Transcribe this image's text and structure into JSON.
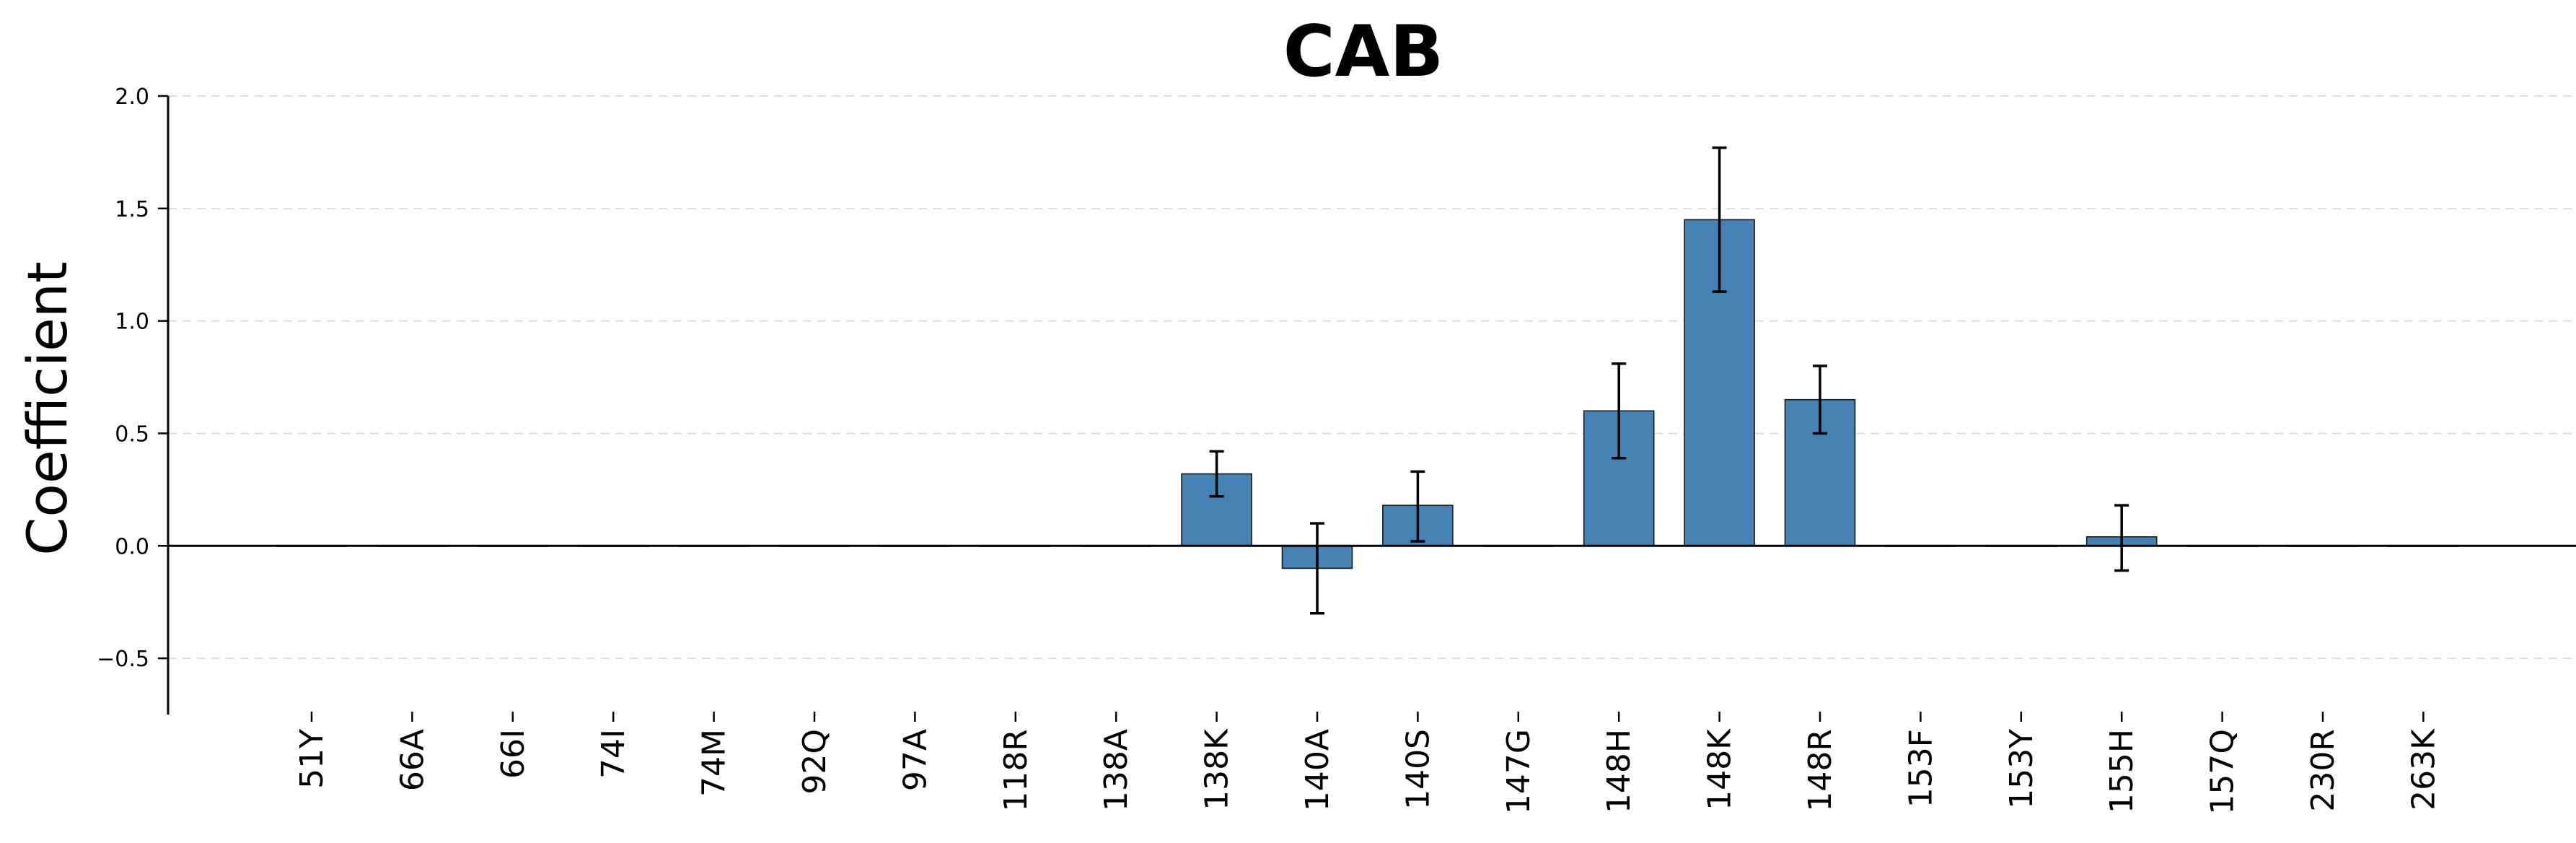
{
  "chart_data": {
    "type": "bar",
    "title": "CAB",
    "xlabel": "",
    "ylabel": "Coefficient",
    "ylim": [
      -0.75,
      2.0
    ],
    "yticks": [
      -0.5,
      0.0,
      0.5,
      1.0,
      1.5,
      2.0
    ],
    "ytick_labels": [
      "−0.5",
      "0.0",
      "0.5",
      "1.0",
      "1.5",
      "2.0"
    ],
    "grid": "horizontal dashed",
    "bar_color": "#4682b4",
    "categories": [
      "51Y",
      "66A",
      "66I",
      "74I",
      "74M",
      "92Q",
      "97A",
      "118R",
      "138A",
      "138K",
      "140A",
      "140S",
      "147G",
      "148H",
      "148K",
      "148R",
      "153F",
      "153Y",
      "155H",
      "157Q",
      "230R",
      "263K"
    ],
    "values": [
      0,
      0,
      0,
      0,
      0,
      0,
      0,
      0,
      0,
      0.32,
      -0.1,
      0.18,
      0,
      0.6,
      1.45,
      0.65,
      0,
      0,
      0.04,
      0,
      0,
      0
    ],
    "error_low": [
      null,
      null,
      null,
      null,
      null,
      null,
      null,
      null,
      null,
      0.22,
      -0.3,
      0.02,
      null,
      0.39,
      1.13,
      0.5,
      null,
      null,
      -0.11,
      null,
      null,
      null
    ],
    "error_high": [
      null,
      null,
      null,
      null,
      null,
      null,
      null,
      null,
      null,
      0.42,
      0.1,
      0.33,
      null,
      0.81,
      1.77,
      0.8,
      null,
      null,
      0.18,
      null,
      null,
      null
    ]
  }
}
